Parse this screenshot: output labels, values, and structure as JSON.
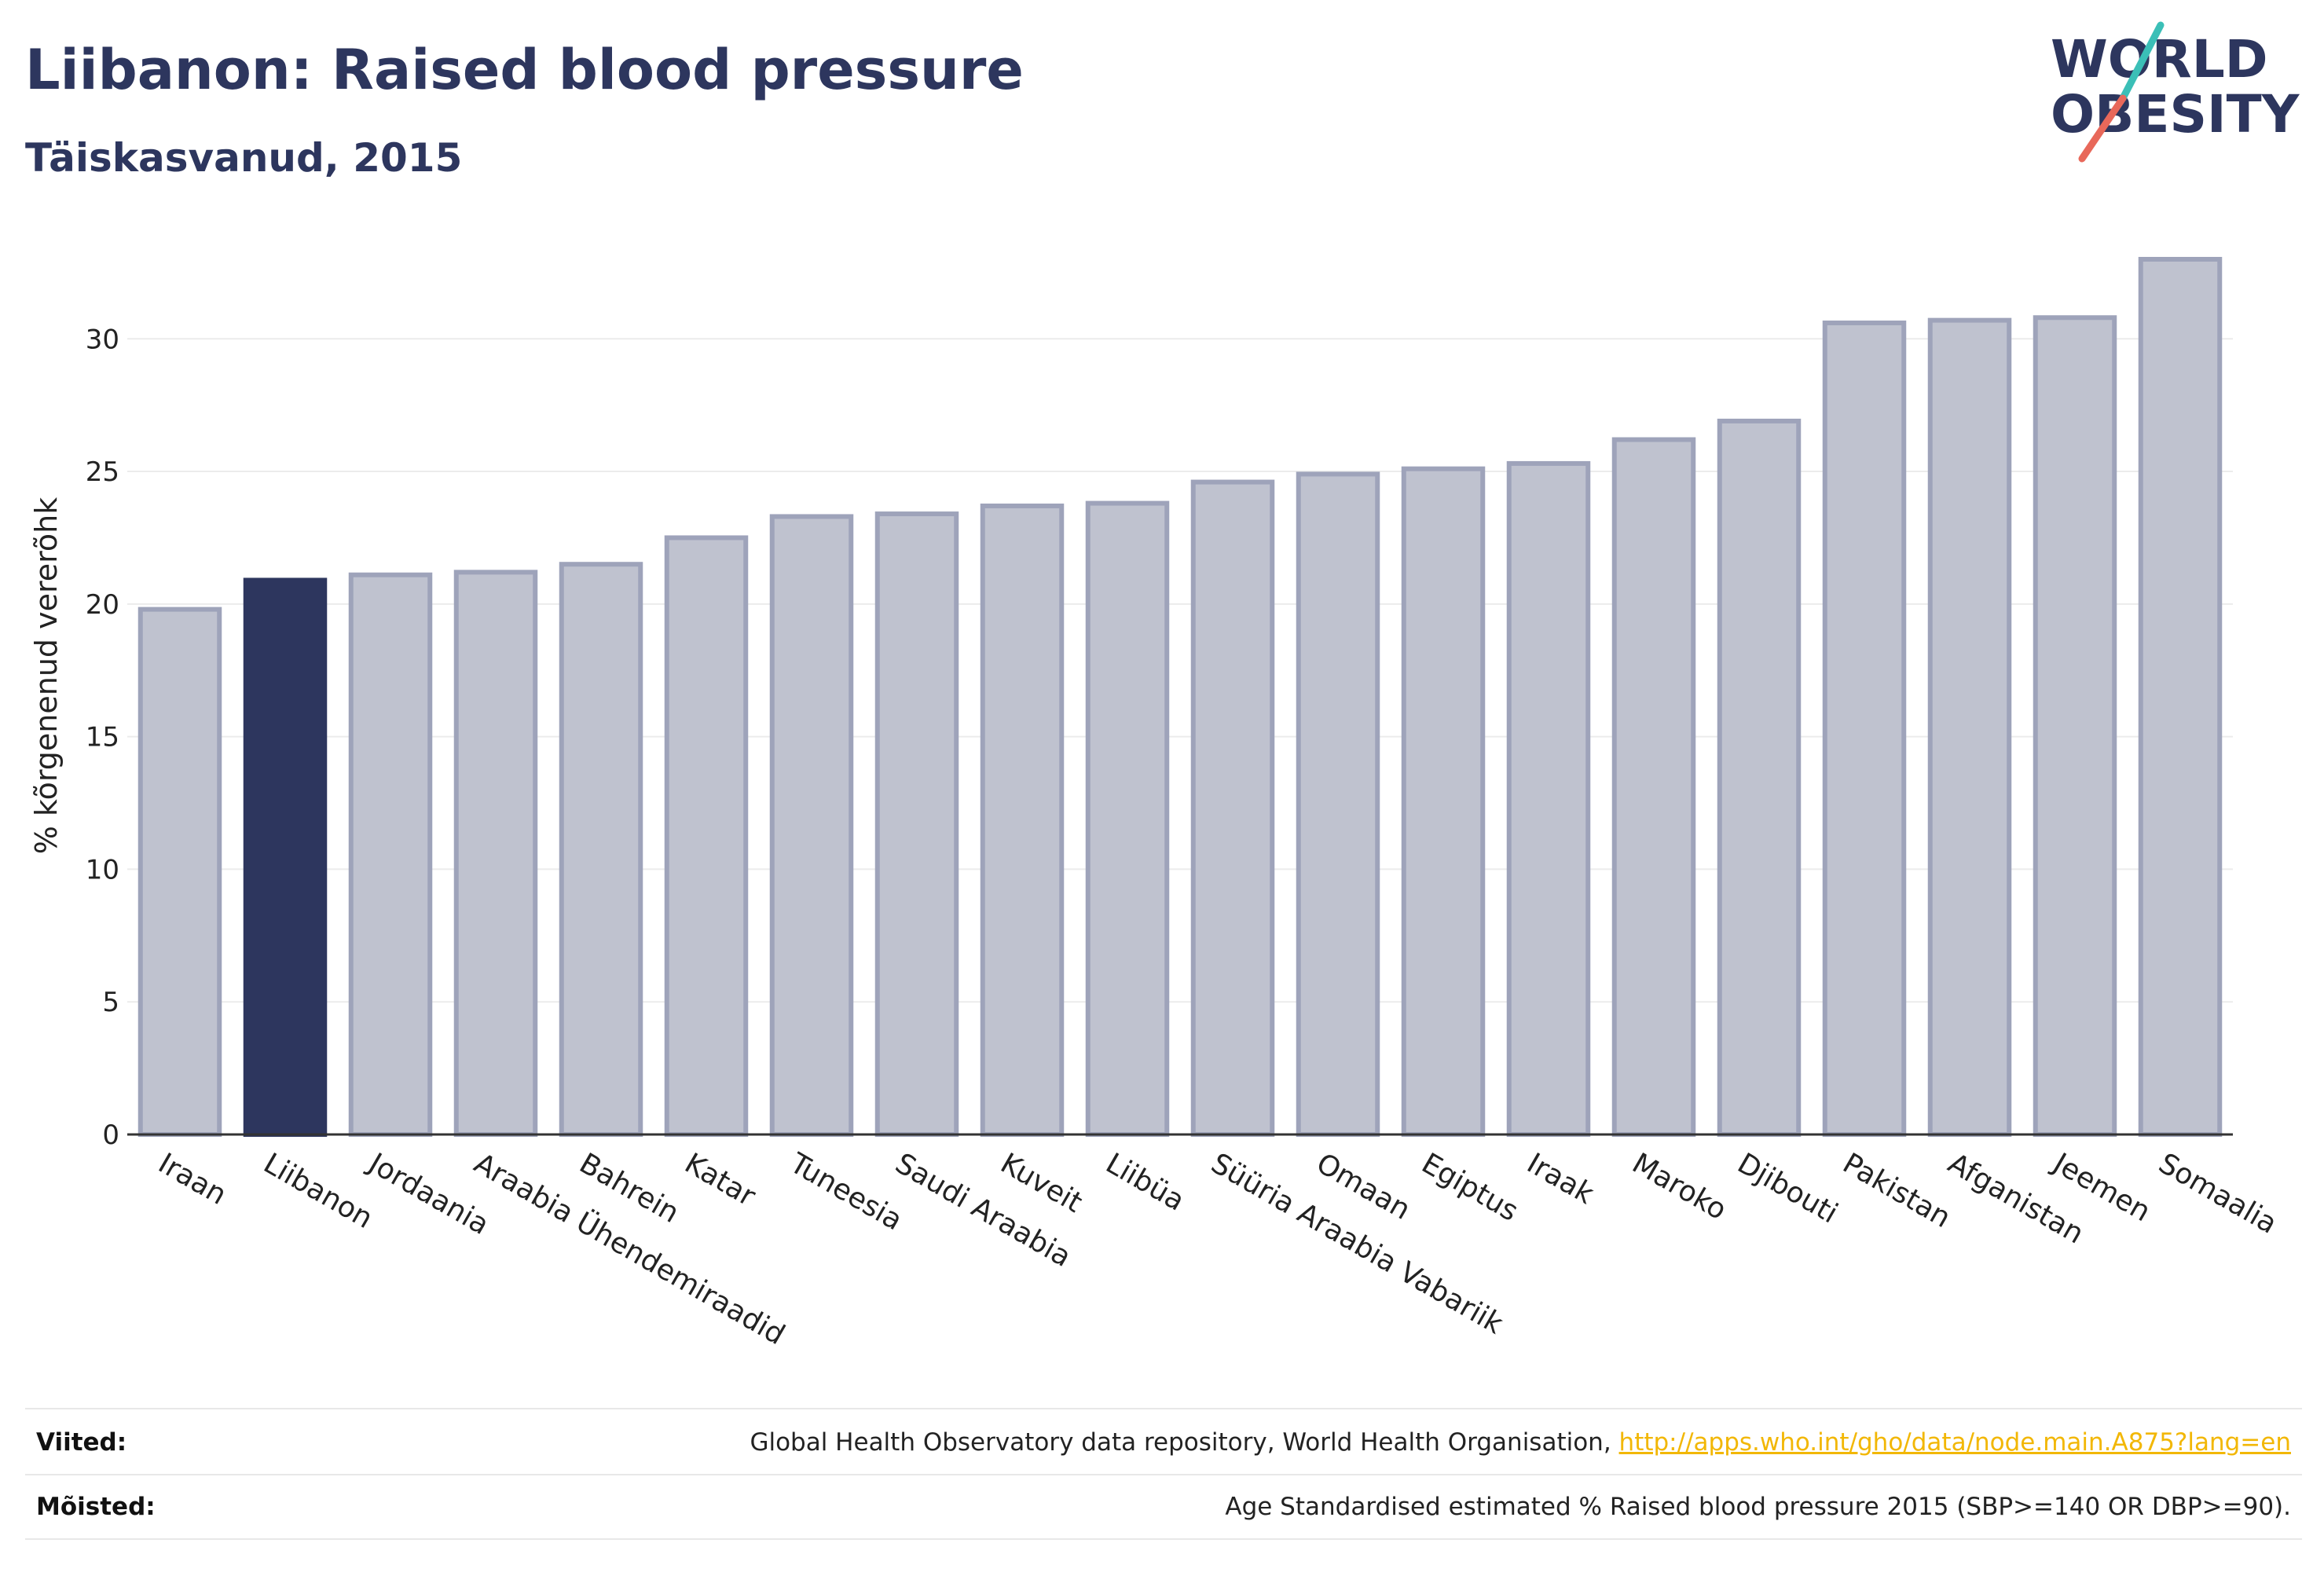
{
  "header": {
    "title": "Liibanon: Raised blood pressure",
    "subtitle": "Täiskasvanud, 2015"
  },
  "logo": {
    "line1": "WORLD",
    "line2": "OBESITY",
    "accent_colors": [
      "#3bbfb7",
      "#e8685a"
    ]
  },
  "colors": {
    "highlight_bar": "#2d365e",
    "other_bar_fill": "#bfc2cf",
    "other_bar_stroke": "#9ea3ba",
    "text": "#2d365e",
    "link": "#f2b705"
  },
  "chart_data": {
    "type": "bar",
    "title": "Liibanon: Raised blood pressure",
    "subtitle": "Täiskasvanud, 2015",
    "xlabel": "",
    "ylabel": "% kõrgenenud vererõhk",
    "ylim": [
      0,
      33
    ],
    "yticks": [
      0,
      5,
      10,
      15,
      20,
      25,
      30
    ],
    "grid": true,
    "highlight": "Liibanon",
    "categories": [
      "Iraan",
      "Liibanon",
      "Jordaania",
      "Araabia Ühendemiraadid",
      "Bahrein",
      "Katar",
      "Tuneesia",
      "Saudi Araabia",
      "Kuveit",
      "Liibüa",
      "Süüria Araabia Vabariik",
      "Omaan",
      "Egiptus",
      "Iraak",
      "Maroko",
      "Djibouti",
      "Pakistan",
      "Afganistan",
      "Jeemen",
      "Somaalia"
    ],
    "values": [
      19.8,
      20.9,
      21.1,
      21.2,
      21.5,
      22.5,
      23.3,
      23.4,
      23.7,
      23.8,
      24.6,
      24.9,
      25.1,
      25.3,
      26.2,
      26.9,
      30.6,
      30.7,
      30.8,
      33.0
    ]
  },
  "footer": {
    "sources_label": "Viited:",
    "sources_text": "Global Health Observatory data repository, World Health Organisation, ",
    "sources_link": "http://apps.who.int/gho/data/node.main.A875?lang=en",
    "definitions_label": "Mõisted:",
    "definitions_text": "Age Standardised estimated % Raised blood pressure 2015 (SBP>=140 OR DBP>=90)."
  }
}
